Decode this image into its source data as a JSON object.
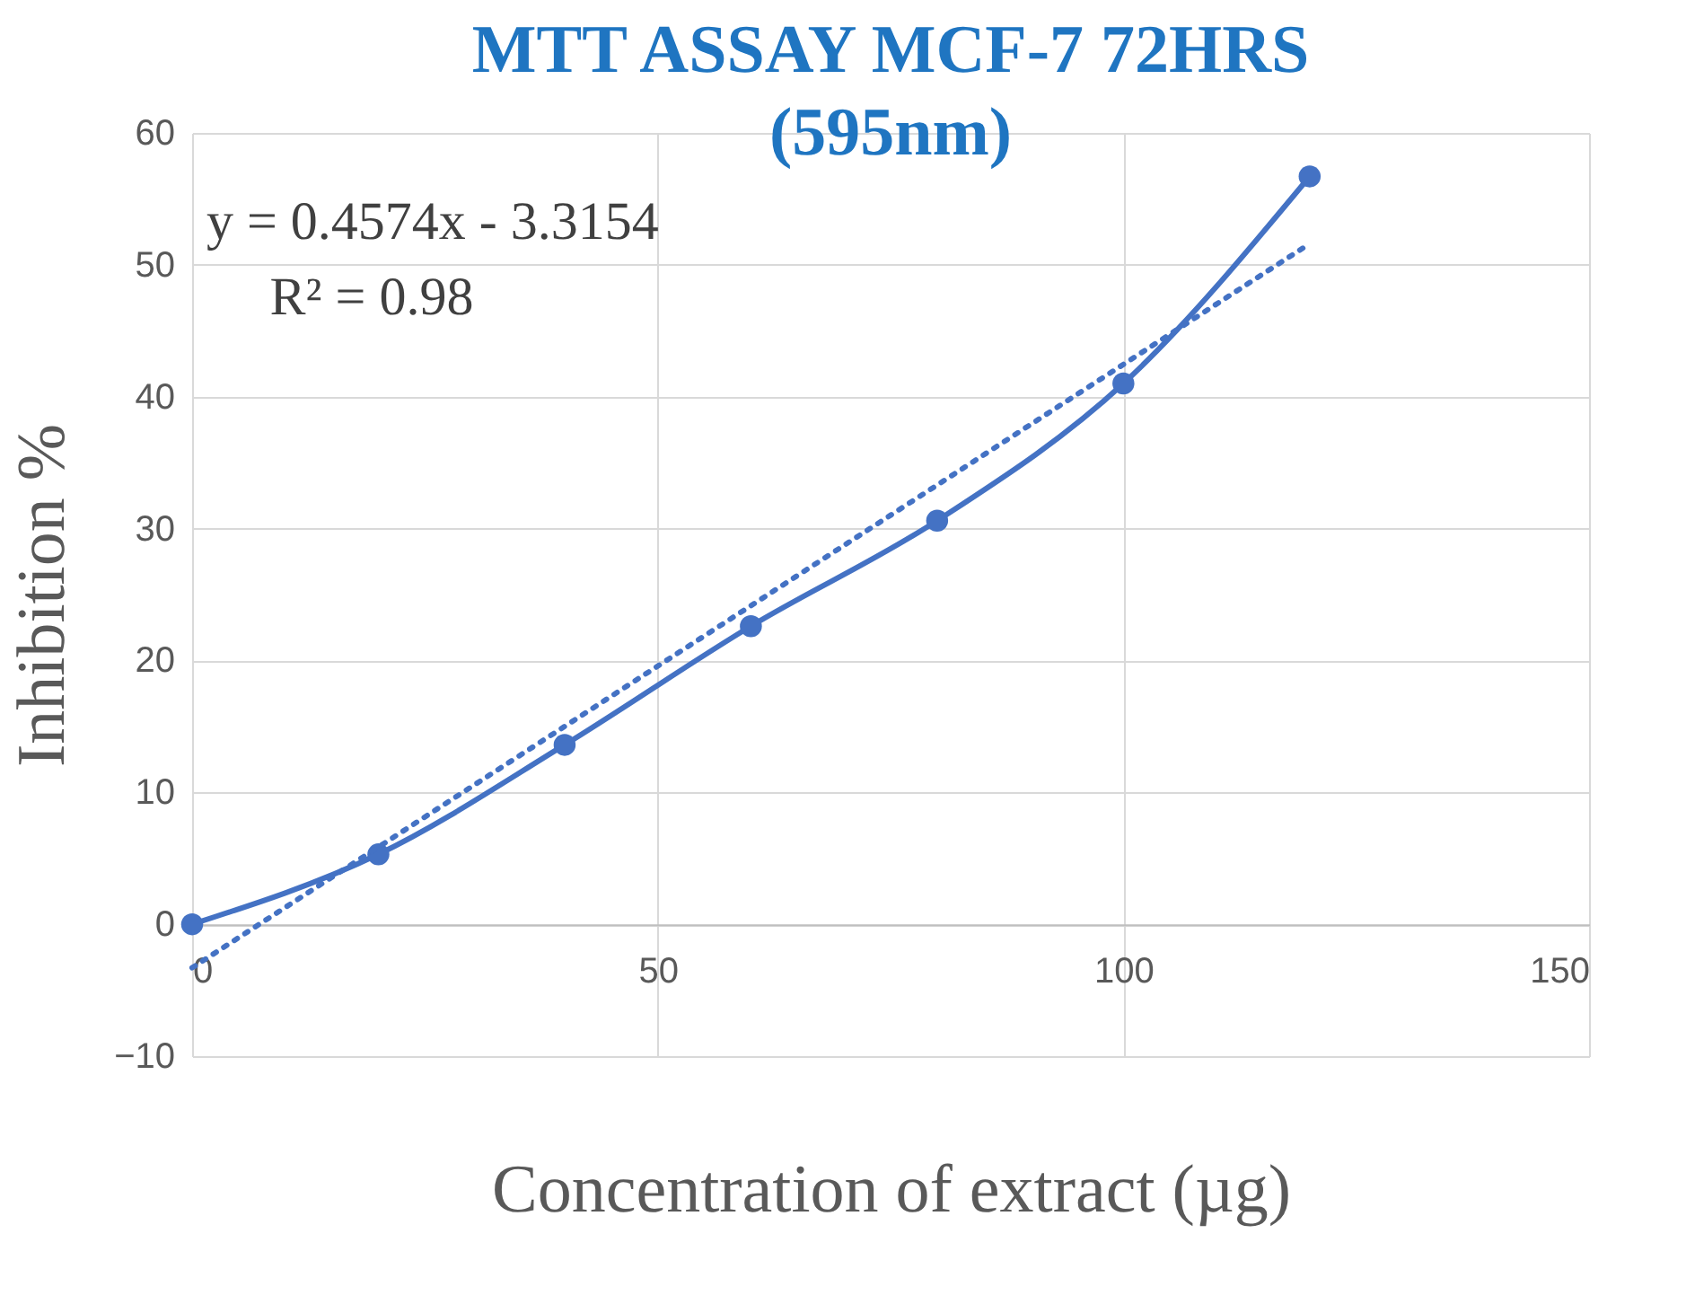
{
  "chart_data": {
    "type": "line",
    "title": [
      "MTT ASSAY MCF-7 72HRS",
      "(595nm)"
    ],
    "xlabel": "Concentration of extract (µg)",
    "ylabel": "Inhibition %",
    "x": [
      0,
      20,
      40,
      60,
      80,
      100,
      120
    ],
    "series": [
      {
        "color": "#4472c4",
        "values": [
          0,
          5.3,
          13.6,
          22.6,
          30.6,
          41.0,
          56.7
        ],
        "marker": "circle",
        "line_style": "solid"
      },
      {
        "type": "line",
        "color": "#4472c4",
        "x": [
          0,
          120
        ],
        "values": [
          -3.3,
          51.6
        ],
        "marker": "none",
        "line_style": "dotted"
      }
    ],
    "annotations": [
      "y = 0.4574x - 3.3154",
      "R² = 0.98"
    ],
    "xlim": [
      0,
      150
    ],
    "xticks": [
      0,
      50,
      100,
      150
    ],
    "ylim": [
      -10,
      60
    ],
    "yticks": [
      -10,
      0,
      10,
      20,
      30,
      40,
      50,
      60
    ],
    "grid": true
  }
}
